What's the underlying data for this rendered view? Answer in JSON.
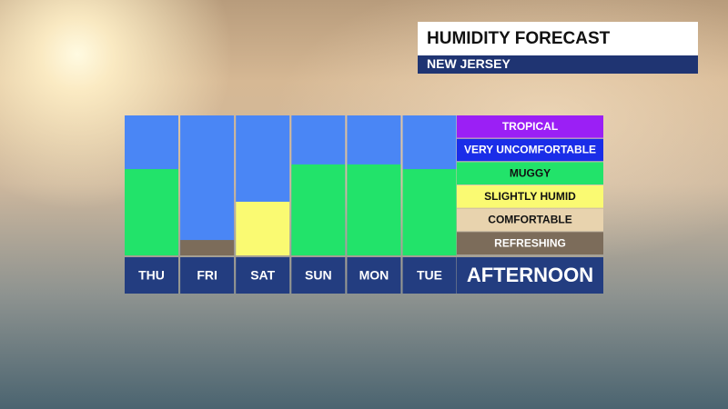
{
  "chart_data": {
    "type": "bar",
    "title": "HUMIDITY FORECAST",
    "subtitle": "NEW JERSEY",
    "categories": [
      "THU",
      "FRI",
      "SAT",
      "SUN",
      "MON",
      "TUE"
    ],
    "values": [
      3.7,
      0.66,
      2.3,
      3.9,
      3.9,
      3.7
    ],
    "bar_colors": [
      "#22e36a",
      "#7c6c5a",
      "#fafa72",
      "#22e36a",
      "#22e36a",
      "#22e36a"
    ],
    "column_color": "#4a86f5",
    "ylim": [
      0,
      6
    ],
    "legend_title": "AFTERNOON",
    "legend": [
      {
        "name": "TROPICAL",
        "color": "#9b1ff5"
      },
      {
        "name": "VERY UNCOMFORTABLE",
        "color": "#1a2de8"
      },
      {
        "name": "MUGGY",
        "color": "#22e36a"
      },
      {
        "name": "SLIGHTLY HUMID",
        "color": "#fafa72"
      },
      {
        "name": "COMFORTABLE",
        "color": "#e8d3ae"
      },
      {
        "name": "REFRESHING",
        "color": "#7c6c5a"
      }
    ]
  }
}
